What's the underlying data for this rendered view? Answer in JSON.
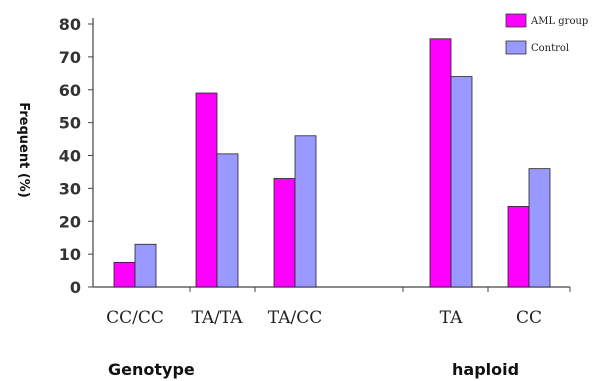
{
  "chart_data": {
    "type": "bar",
    "categories": [
      "CC/CC",
      "TA/TA",
      "TA/CC",
      "TA",
      "CC"
    ],
    "series": [
      {
        "name": "AML group",
        "values": [
          7.5,
          59,
          33,
          75.5,
          24.5
        ],
        "color": "#ff00ff"
      },
      {
        "name": "Control",
        "values": [
          13,
          40.5,
          46,
          64,
          36
        ],
        "color": "#9999ff"
      }
    ],
    "ylabel": "Frequent (%)",
    "yticks": [
      0,
      10,
      20,
      30,
      40,
      50,
      60,
      70,
      80
    ],
    "ylim": [
      0,
      80
    ],
    "groups": [
      "Genotype",
      "haploid"
    ],
    "legend": [
      "AML group",
      "Control"
    ],
    "grid": false,
    "legend_position": "top-right"
  }
}
